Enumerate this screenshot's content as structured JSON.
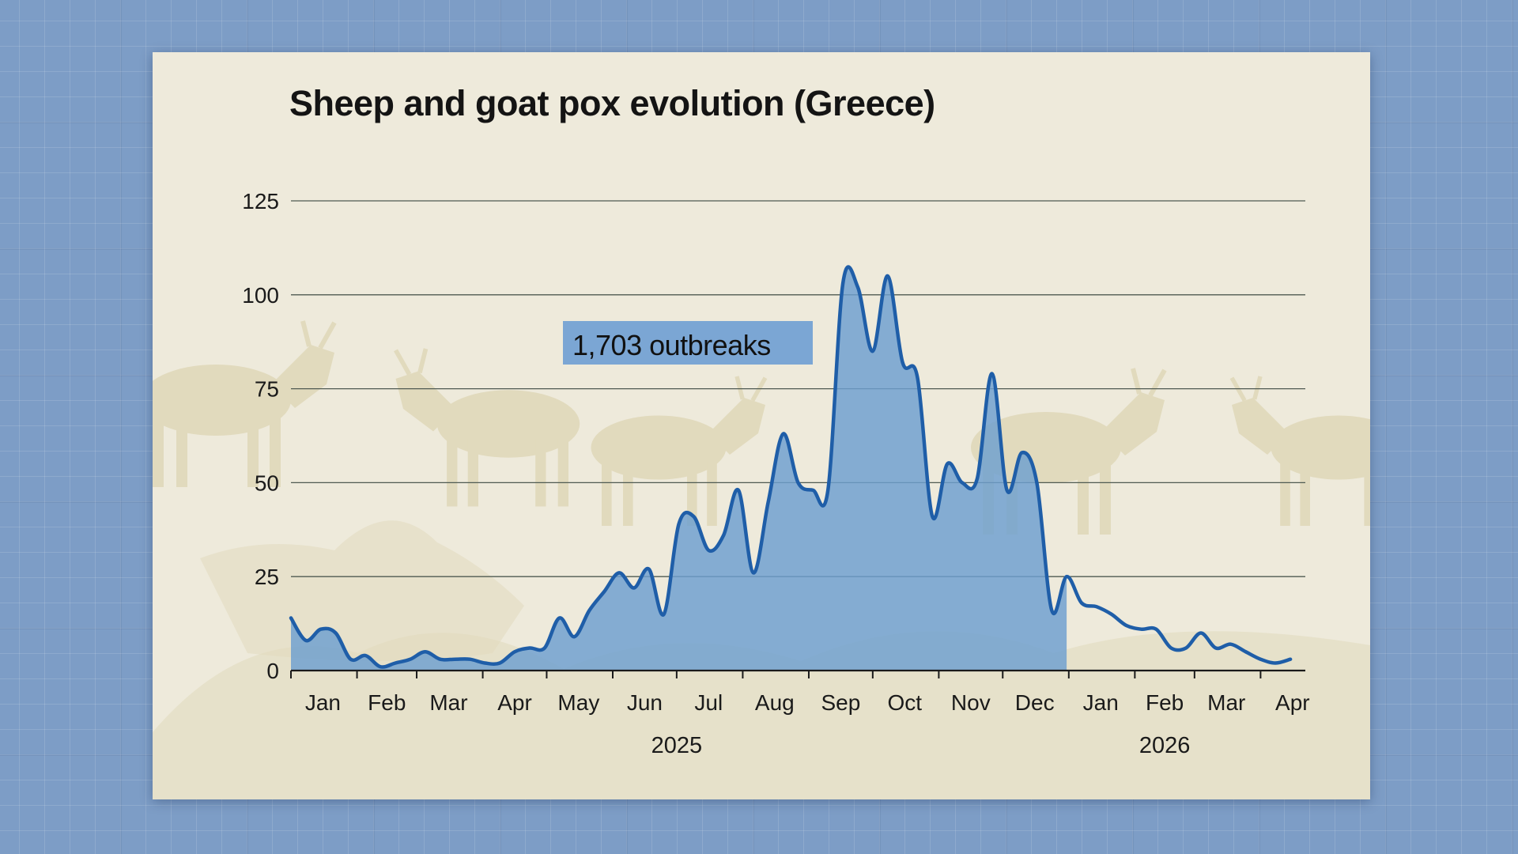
{
  "colors": {
    "line": "#1f5ea8",
    "area": "#6d9fcf",
    "annotation_box": "#7ba6d4",
    "gridline": "#4f5a52",
    "card": "#eeeadb",
    "background": "#7d9dc6",
    "silhouette": "#d9cfa8"
  },
  "chart_data": {
    "type": "area",
    "title": "Sheep and goat pox evolution (Greece)",
    "xlabel": "",
    "ylabel": "",
    "ylim": [
      0,
      125
    ],
    "yticks": [
      "0",
      "25",
      "50",
      "75",
      "100",
      "125"
    ],
    "grid": true,
    "legend": "none",
    "month_labels": [
      "Jan",
      "Feb",
      "Mar",
      "Apr",
      "May",
      "Jun",
      "Jul",
      "Aug",
      "Sep",
      "Oct",
      "Nov",
      "Dec",
      "Jan",
      "Feb",
      "Mar",
      "Apr"
    ],
    "year_labels": [
      "2025",
      "2026"
    ],
    "annotation": "1,703 outbreaks",
    "shaded_until": "2025-12-31",
    "series": [
      {
        "x": [
          "2025-01-01",
          "2025-01-08",
          "2025-01-15",
          "2025-01-22",
          "2025-01-29",
          "2025-02-05",
          "2025-02-12",
          "2025-02-19",
          "2025-02-26",
          "2025-03-05",
          "2025-03-12",
          "2025-03-19",
          "2025-03-26",
          "2025-04-02",
          "2025-04-09",
          "2025-04-16",
          "2025-04-23",
          "2025-04-30",
          "2025-05-07",
          "2025-05-14",
          "2025-05-21",
          "2025-05-28",
          "2025-06-04",
          "2025-06-11",
          "2025-06-18",
          "2025-06-25",
          "2025-07-02",
          "2025-07-09",
          "2025-07-16",
          "2025-07-23",
          "2025-07-30",
          "2025-08-06",
          "2025-08-13",
          "2025-08-20",
          "2025-08-27",
          "2025-09-03",
          "2025-09-10",
          "2025-09-17",
          "2025-09-24",
          "2025-10-01",
          "2025-10-08",
          "2025-10-15",
          "2025-10-22",
          "2025-10-29",
          "2025-11-05",
          "2025-11-12",
          "2025-11-19",
          "2025-11-26",
          "2025-12-03",
          "2025-12-10",
          "2025-12-17",
          "2025-12-24",
          "2025-12-31",
          "2026-01-07",
          "2026-01-14",
          "2026-01-21",
          "2026-01-28",
          "2026-02-04",
          "2026-02-11",
          "2026-02-18",
          "2026-02-25",
          "2026-03-04",
          "2026-03-11",
          "2026-03-18",
          "2026-03-25",
          "2026-04-01",
          "2026-04-08",
          "2026-04-15"
        ],
        "values": [
          14,
          8,
          11,
          10,
          3,
          4,
          1,
          2,
          3,
          5,
          3,
          3,
          3,
          2,
          2,
          5,
          6,
          6,
          14,
          9,
          16,
          21,
          26,
          22,
          27,
          15,
          39,
          41,
          32,
          36,
          48,
          26,
          45,
          63,
          50,
          48,
          48,
          103,
          102,
          85,
          105,
          82,
          78,
          41,
          55,
          50,
          51,
          79,
          48,
          58,
          50,
          16,
          25,
          18,
          17,
          15,
          12,
          11,
          11,
          6,
          6,
          10,
          6,
          7,
          5,
          3,
          2,
          3
        ]
      }
    ]
  }
}
